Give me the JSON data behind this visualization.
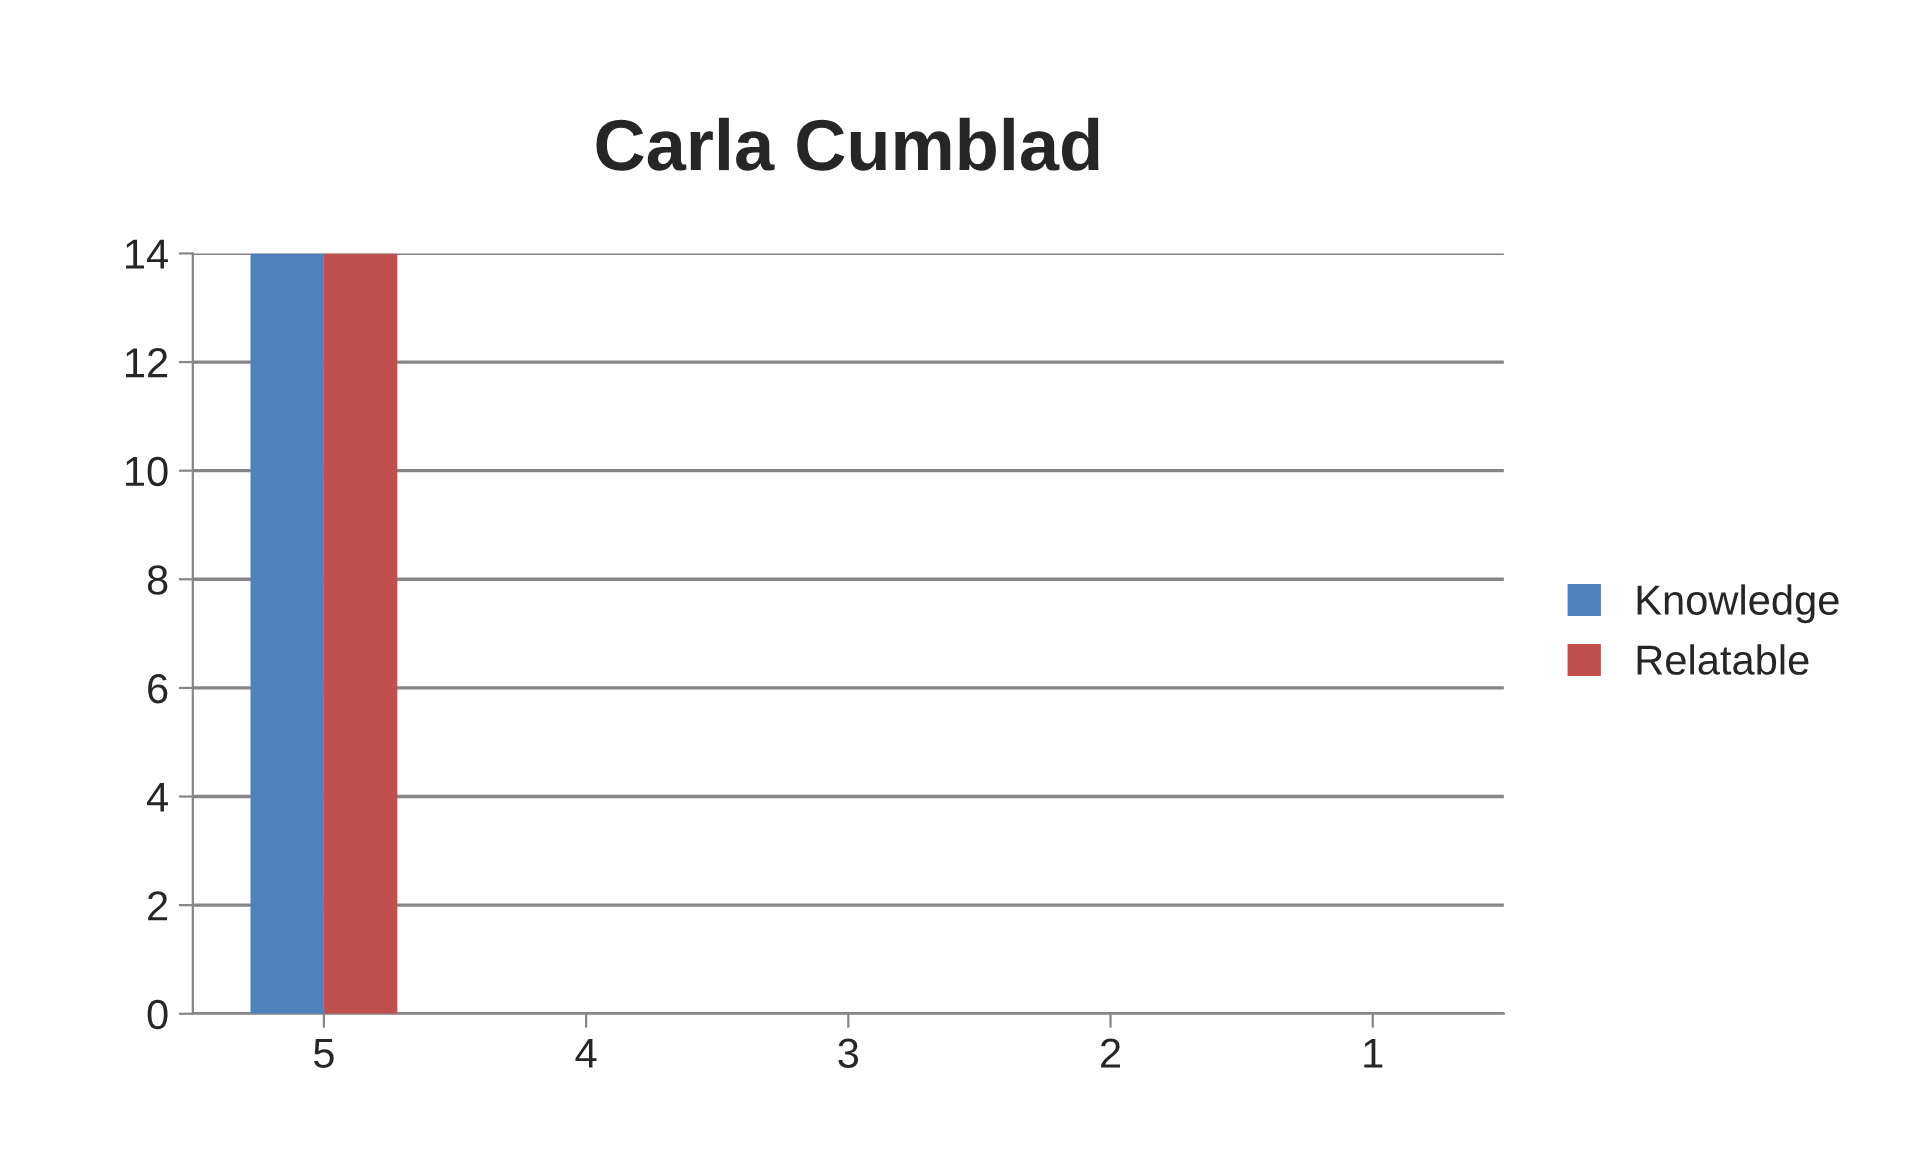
{
  "chart_data": {
    "type": "bar",
    "title": "Carla Cumblad",
    "categories": [
      "5",
      "4",
      "3",
      "2",
      "1"
    ],
    "series": [
      {
        "name": "Knowledge",
        "color": "#4f81bd",
        "values": [
          14,
          0,
          0,
          0,
          0
        ]
      },
      {
        "name": "Relatable",
        "color": "#c0504d",
        "values": [
          14,
          0,
          0,
          0,
          0
        ]
      }
    ],
    "ylim": [
      0,
      14
    ],
    "yticks": [
      0,
      2,
      4,
      6,
      8,
      10,
      12,
      14
    ],
    "grid": "y",
    "legend": "right"
  }
}
